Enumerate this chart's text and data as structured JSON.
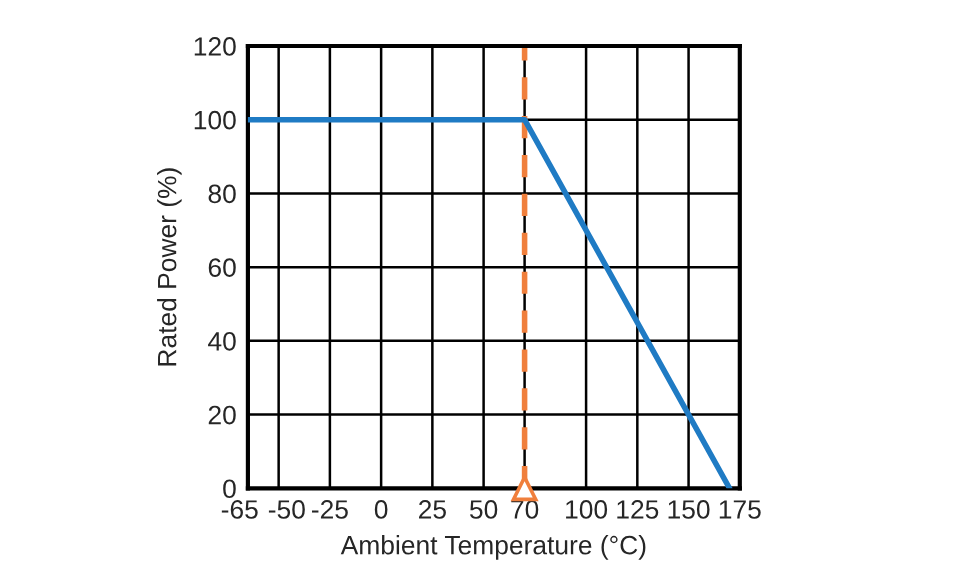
{
  "chart_data": {
    "type": "line",
    "xlabel": "Ambient Temperature (°C)",
    "ylabel": "Rated Power (%)",
    "x": [
      -65,
      70,
      150,
      170
    ],
    "series": [
      {
        "color": "#1f7bc4",
        "values": [
          100,
          100,
          20,
          0
        ]
      }
    ],
    "xlim": [
      -65,
      175
    ],
    "xticks": [
      -65,
      -50,
      -25,
      0,
      25,
      50,
      70,
      100,
      125,
      150,
      175
    ],
    "ylim": [
      0,
      120
    ],
    "yticks": [
      0,
      20,
      40,
      60,
      80,
      100,
      120
    ],
    "grid": true,
    "marker": "none",
    "line_style": "solid",
    "ref_lines": [
      {
        "axis": "x",
        "value": 70,
        "label": null,
        "color": "#f07f3c",
        "line_style": "dashed"
      }
    ]
  }
}
